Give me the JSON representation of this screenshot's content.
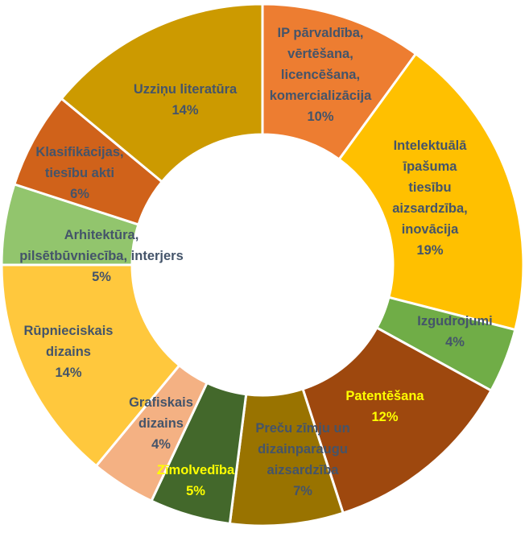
{
  "chart_data": {
    "type": "pie",
    "variant": "donut",
    "title": "",
    "legend": "none",
    "slices": [
      {
        "label": "IP pārvaldība, vērtēšana, licencēšana, komercializācija",
        "label_lines": [
          "IP pārvaldība,",
          "vērtēšana,",
          "licencēšana,",
          "komercializācija"
        ],
        "value": 10,
        "value_label": "10%",
        "color": "#ED7D31",
        "text_color": "#44546A"
      },
      {
        "label": "Intelektuālā īpašuma tiesību aizsardzība, inovācija",
        "label_lines": [
          "Intelektuālā",
          "īpašuma",
          "tiesību",
          "aizsardzība,",
          "inovācija"
        ],
        "value": 19,
        "value_label": "19%",
        "color": "#FFC000",
        "text_color": "#44546A"
      },
      {
        "label": "Izgudrojumi",
        "label_lines": [
          "Izgudrojumi"
        ],
        "value": 4,
        "value_label": "4%",
        "color": "#70AD47",
        "text_color": "#44546A"
      },
      {
        "label": "Patentēšana",
        "label_lines": [
          "Patentēšana"
        ],
        "value": 12,
        "value_label": "12%",
        "color": "#9E480E",
        "text_color": "#FFFF00"
      },
      {
        "label": "Preču zīmju un dizainparaugu aizsardzība",
        "label_lines": [
          "Preču zīmju un",
          "dizainparaugu",
          "aizsardzība"
        ],
        "value": 7,
        "value_label": "7%",
        "color": "#997300",
        "text_color": "#44546A"
      },
      {
        "label": "Zīmolvedība",
        "label_lines": [
          "Zīmolvedība"
        ],
        "value": 5,
        "value_label": "5%",
        "color": "#43682B",
        "text_color": "#FFFF00"
      },
      {
        "label": "Grafiskais dizains",
        "label_lines": [
          "Grafiskais",
          "dizains"
        ],
        "value": 4,
        "value_label": "4%",
        "color": "#F4B183",
        "text_color": "#44546A"
      },
      {
        "label": "Rūpnieciskais dizains",
        "label_lines": [
          "Rūpnieciskais",
          "dizains"
        ],
        "value": 14,
        "value_label": "14%",
        "color": "#FFC83D",
        "text_color": "#44546A"
      },
      {
        "label": "Arhitektūra, pilsētbūvniecība, interjers",
        "label_lines": [
          "Arhitektūra,",
          "pilsētbūvniecība, interjers"
        ],
        "value": 5,
        "value_label": "5%",
        "color": "#92C56D",
        "text_color": "#44546A"
      },
      {
        "label": "Klasifikācijas, tiesību akti",
        "label_lines": [
          "Klasifikācijas,",
          "tiesību akti"
        ],
        "value": 6,
        "value_label": "6%",
        "color": "#D0621A",
        "text_color": "#44546A"
      },
      {
        "label": "Uzziņu literatūra",
        "label_lines": [
          "Uzziņu literatūra"
        ],
        "value": 14,
        "value_label": "14%",
        "color": "#CC9A00",
        "text_color": "#44546A"
      }
    ]
  }
}
